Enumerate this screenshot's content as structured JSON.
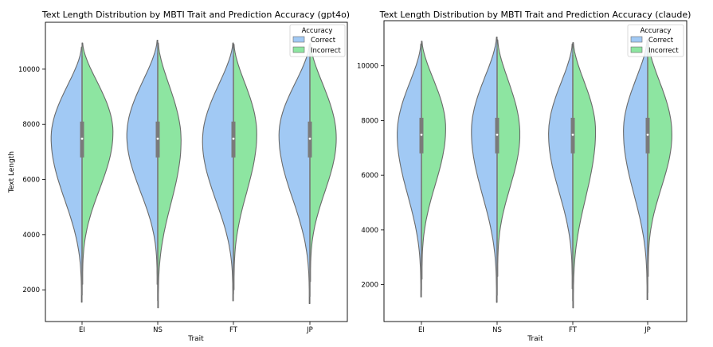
{
  "colors": {
    "correct": "#a1c9f4",
    "incorrect": "#8de5a1",
    "outline": "#6b6b6b",
    "box": "#7a7a7a"
  },
  "chart_data": [
    {
      "type": "violin",
      "title": "Text Length Distribution by MBTI Trait and Prediction Accuracy (gpt4o)",
      "xlabel": "Trait",
      "ylabel": "Text Length",
      "categories": [
        "EI",
        "NS",
        "FT",
        "JP"
      ],
      "ylim": [
        850,
        11700
      ],
      "yticks": [
        2000,
        4000,
        6000,
        8000,
        10000
      ],
      "grid": false,
      "legend": {
        "title": "Accuracy",
        "entries": [
          "Correct",
          "Incorrect"
        ],
        "placement": "top-right"
      },
      "violins": [
        {
          "category": "EI",
          "correct": {
            "min": 1550,
            "max": 10800,
            "mode": 7500,
            "max_width": 1.0
          },
          "incorrect": {
            "min": 2200,
            "max": 10950,
            "mode": 7700,
            "max_width": 1.0
          },
          "q1": 6800,
          "median": 7480,
          "q3": 8100
        },
        {
          "category": "NS",
          "correct": {
            "min": 2200,
            "max": 11050,
            "mode": 7600,
            "max_width": 1.0
          },
          "incorrect": {
            "min": 1350,
            "max": 10950,
            "mode": 7400,
            "max_width": 0.75
          },
          "q1": 6800,
          "median": 7480,
          "q3": 8100
        },
        {
          "category": "FT",
          "correct": {
            "min": 1600,
            "max": 10950,
            "mode": 7400,
            "max_width": 1.0
          },
          "incorrect": {
            "min": 2000,
            "max": 10900,
            "mode": 7650,
            "max_width": 0.75
          },
          "q1": 6800,
          "median": 7480,
          "q3": 8100
        },
        {
          "category": "JP",
          "correct": {
            "min": 1500,
            "max": 10900,
            "mode": 7600,
            "max_width": 1.0
          },
          "incorrect": {
            "min": 2300,
            "max": 10950,
            "mode": 7500,
            "max_width": 0.85
          },
          "q1": 6800,
          "median": 7480,
          "q3": 8100
        }
      ]
    },
    {
      "type": "violin",
      "title": "Text Length Distribution by MBTI Trait and Prediction Accuracy (claude)",
      "xlabel": "Trait",
      "ylabel": "",
      "categories": [
        "EI",
        "NS",
        "FT",
        "JP"
      ],
      "ylim": [
        650,
        11650
      ],
      "yticks": [
        2000,
        4000,
        6000,
        8000,
        10000
      ],
      "grid": false,
      "legend": {
        "title": "Accuracy",
        "entries": [
          "Correct",
          "Incorrect"
        ],
        "placement": "top-right"
      },
      "violins": [
        {
          "category": "EI",
          "correct": {
            "min": 1550,
            "max": 10800,
            "mode": 7500,
            "max_width": 0.8
          },
          "incorrect": {
            "min": 2200,
            "max": 10900,
            "mode": 7700,
            "max_width": 0.8
          },
          "q1": 6800,
          "median": 7480,
          "q3": 8100
        },
        {
          "category": "NS",
          "correct": {
            "min": 1350,
            "max": 11050,
            "mode": 7600,
            "max_width": 0.85
          },
          "incorrect": {
            "min": 2300,
            "max": 10950,
            "mode": 7500,
            "max_width": 0.75
          },
          "q1": 6800,
          "median": 7480,
          "q3": 8100
        },
        {
          "category": "FT",
          "correct": {
            "min": 1850,
            "max": 10800,
            "mode": 7500,
            "max_width": 0.8
          },
          "incorrect": {
            "min": 1150,
            "max": 10850,
            "mode": 7600,
            "max_width": 0.75
          },
          "q1": 6800,
          "median": 7480,
          "q3": 8100
        },
        {
          "category": "JP",
          "correct": {
            "min": 1450,
            "max": 10950,
            "mode": 7600,
            "max_width": 0.8
          },
          "incorrect": {
            "min": 2300,
            "max": 10900,
            "mode": 7500,
            "max_width": 0.8
          },
          "q1": 6800,
          "median": 7480,
          "q3": 8100
        }
      ]
    }
  ]
}
